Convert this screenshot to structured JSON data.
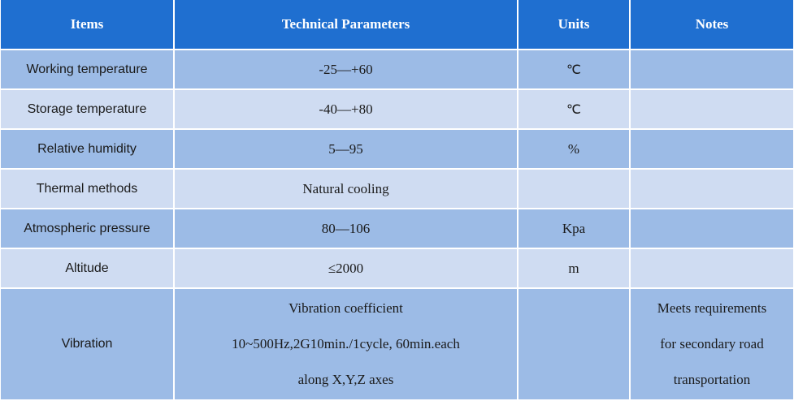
{
  "headers": {
    "items": "Items",
    "technical_parameters": "Technical Parameters",
    "units": "Units",
    "notes": "Notes"
  },
  "rows": [
    {
      "item": "Working temperature",
      "parameter": "-25—+60",
      "unit": "℃",
      "note": ""
    },
    {
      "item": "Storage temperature",
      "parameter": "-40—+80",
      "unit": "℃",
      "note": ""
    },
    {
      "item": "Relative humidity",
      "parameter": "5—95",
      "unit": "%",
      "note": ""
    },
    {
      "item": "Thermal methods",
      "parameter": "Natural cooling",
      "unit": "",
      "note": ""
    },
    {
      "item": "Atmospheric pressure",
      "parameter": "80—106",
      "unit": "Kpa",
      "note": ""
    },
    {
      "item": "Altitude",
      "parameter": "≤2000",
      "unit": "m",
      "note": ""
    }
  ],
  "vibration": {
    "item": "Vibration",
    "parameter_line1": "Vibration coefficient",
    "parameter_line2": "10~500Hz,2G10min./1cycle, 60min.each",
    "parameter_line3": "along X,Y,Z axes",
    "unit": "",
    "note_line1": "Meets requirements",
    "note_line2": "for secondary road",
    "note_line3": "transportation"
  },
  "colors": {
    "header_bg": "#1f6fd0",
    "row_dark": "#9cbbe6",
    "row_light": "#cfdcf2"
  }
}
